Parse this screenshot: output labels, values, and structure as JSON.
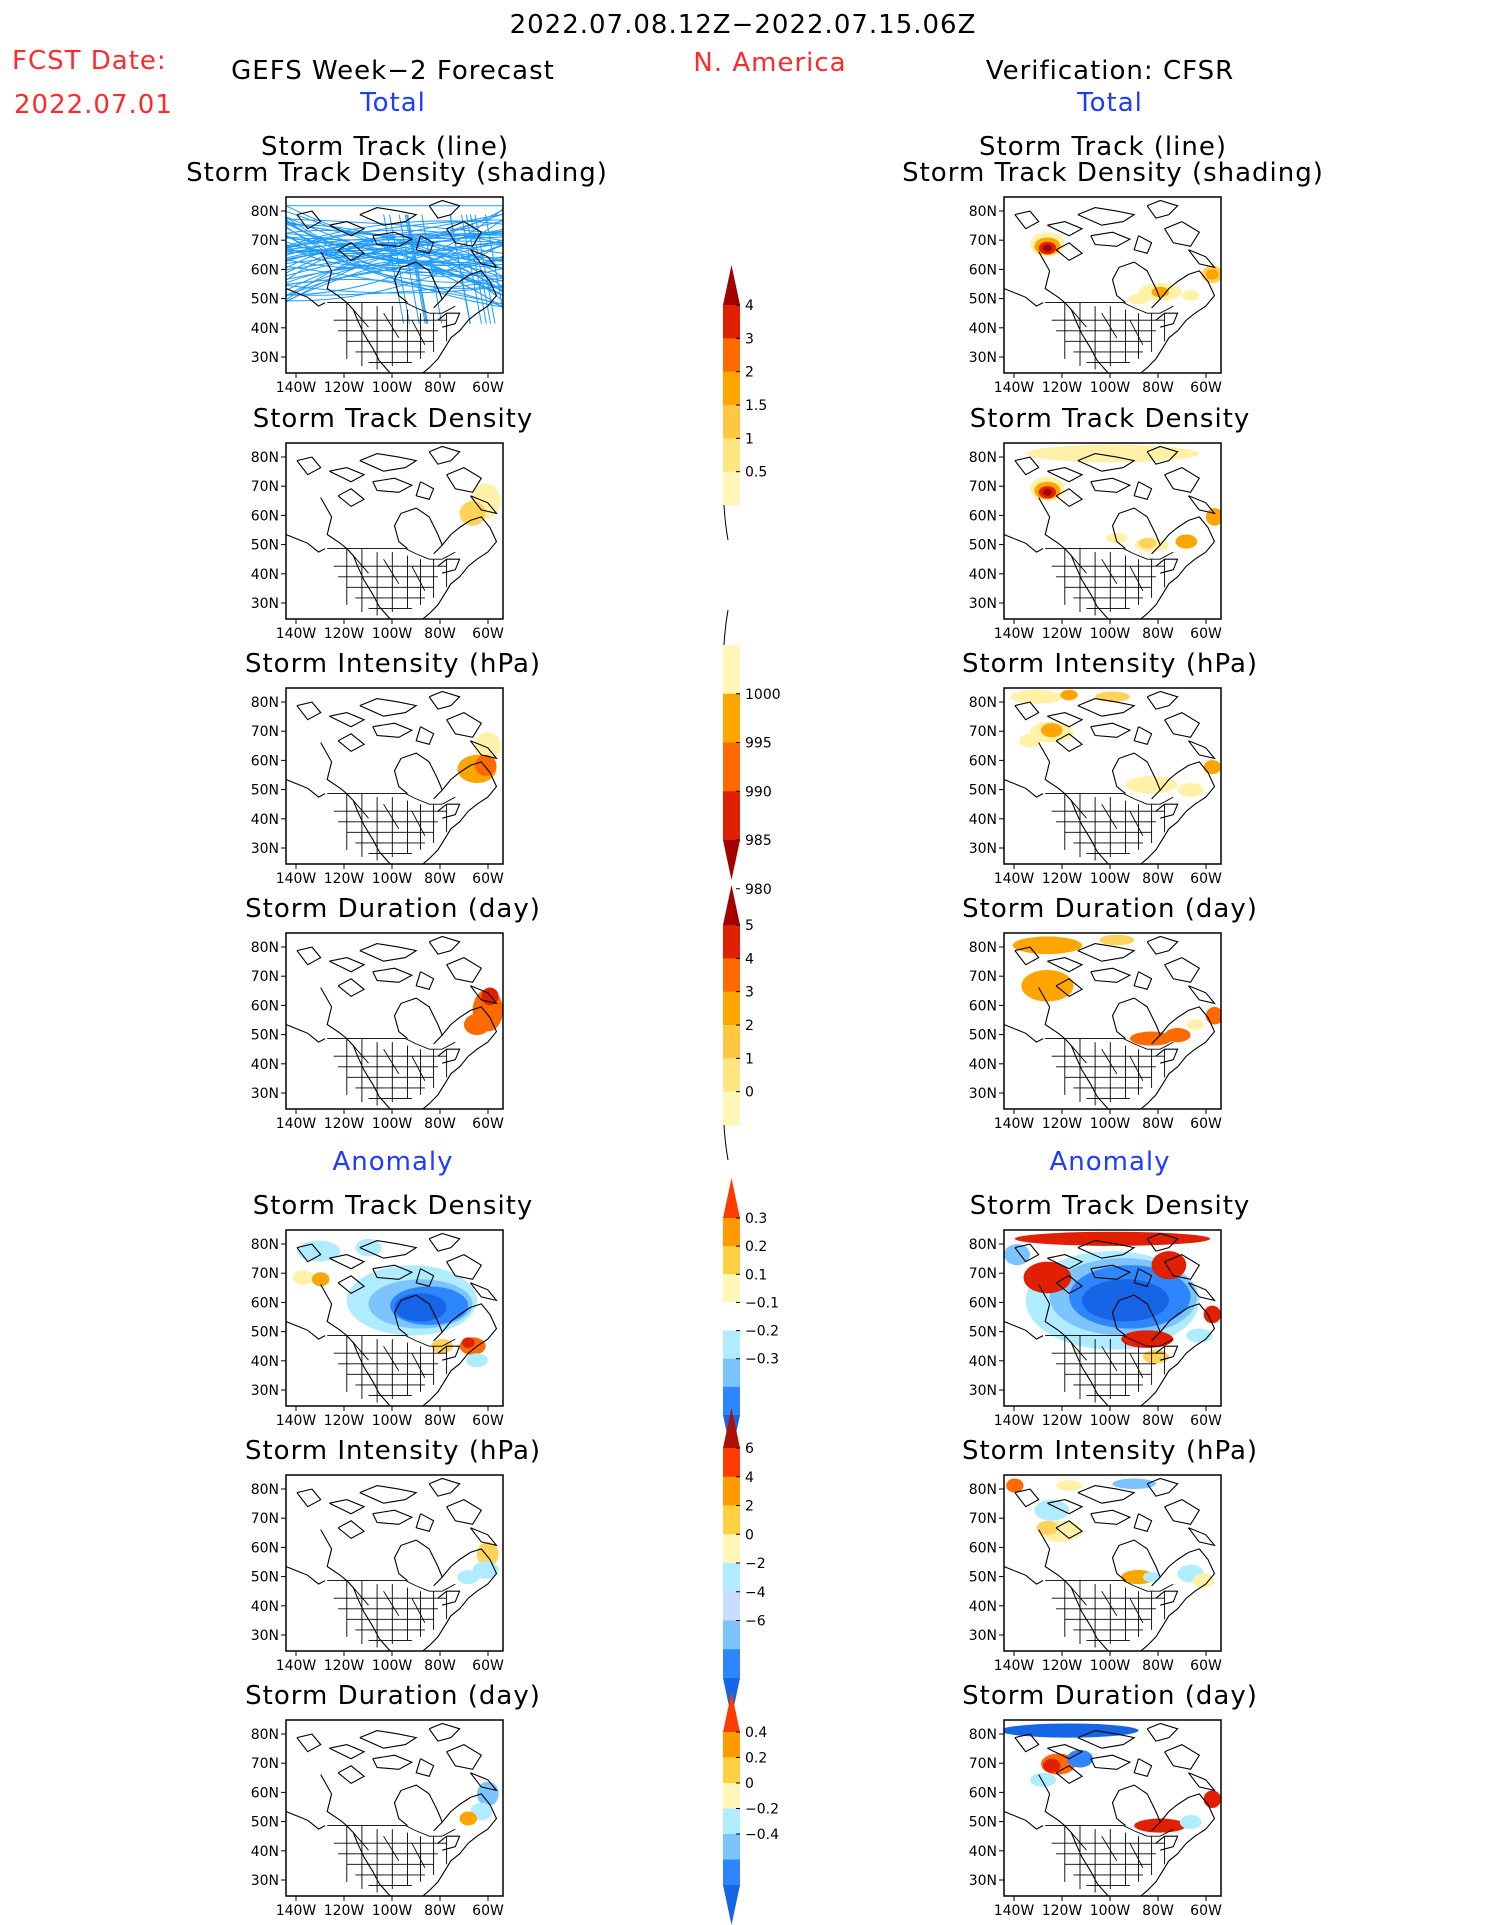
{
  "header": {
    "date_range": "2022.07.08.12Z−2022.07.15.06Z",
    "fcst_label": "FCST Date:",
    "fcst_date": "2022.07.01",
    "left_title": "GEFS Week−2 Forecast",
    "region": "N. America",
    "right_title": "Verification: CFSR",
    "total_left": "Total",
    "total_right": "Total",
    "anomaly_left": "Anomaly",
    "anomaly_right": "Anomaly"
  },
  "panel_titles": {
    "track_line": "Storm Track (line)",
    "track_shading": "Storm Track Density (shading)",
    "density": "Storm Track Density",
    "intensity": "Storm Intensity (hPa)",
    "duration": "Storm Duration (day)"
  },
  "axis": {
    "lat_ticks": [
      "80N",
      "70N",
      "60N",
      "50N",
      "40N",
      "30N"
    ],
    "lon_ticks": [
      "140W",
      "120W",
      "100W",
      "80W",
      "60W"
    ]
  },
  "colorbars": [
    {
      "id": "density_total",
      "labels": [
        "4",
        "3",
        "2",
        "1.5",
        "1",
        "0.5"
      ],
      "colors": [
        "#a50000",
        "#e02000",
        "#ff6a00",
        "#ffa500",
        "#ffc840",
        "#ffe680",
        "#fff7b8"
      ]
    },
    {
      "id": "intensity_total",
      "labels": [
        "1000",
        "995",
        "990",
        "985",
        "980"
      ],
      "colors": [
        "#fff7b8",
        "#ffa500",
        "#ff6a00",
        "#e02000",
        "#a50000"
      ]
    },
    {
      "id": "duration_total",
      "labels": [
        "5",
        "4",
        "3",
        "2",
        "1",
        "0"
      ],
      "colors": [
        "#a50000",
        "#e02000",
        "#ff6a00",
        "#ffa500",
        "#ffc840",
        "#ffe680",
        "#fff7b8"
      ]
    },
    {
      "id": "density_anom",
      "labels": [
        "0.3",
        "0.2",
        "0.1",
        "−0.1",
        "−0.2",
        "−0.3"
      ],
      "colors": [
        "#ff3c00",
        "#ff9a00",
        "#ffd040",
        "#fff7b8",
        "#ffffff",
        "#b0ecff",
        "#7cc4ff",
        "#2e86ff",
        "#1565e6"
      ]
    },
    {
      "id": "intensity_anom",
      "labels": [
        "6",
        "4",
        "2",
        "0",
        "−2",
        "−4",
        "−6"
      ],
      "colors": [
        "#b01000",
        "#ff3c00",
        "#ff9a00",
        "#ffd040",
        "#fff7b8",
        "#b0ecff",
        "#c8ddff",
        "#7cc4ff",
        "#2e86ff",
        "#1565e6"
      ]
    },
    {
      "id": "duration_anom",
      "labels": [
        "0.4",
        "0.2",
        "0",
        "−0.2",
        "−0.4"
      ],
      "colors": [
        "#ff3c00",
        "#ff9a00",
        "#ffd040",
        "#fff7b8",
        "#b0ecff",
        "#7cc4ff",
        "#2e86ff",
        "#1565e6"
      ]
    }
  ],
  "colors": {
    "header_red": "#ff2a2a",
    "header_blue": "#1e3cff",
    "track_line": "#1e9bff"
  }
}
